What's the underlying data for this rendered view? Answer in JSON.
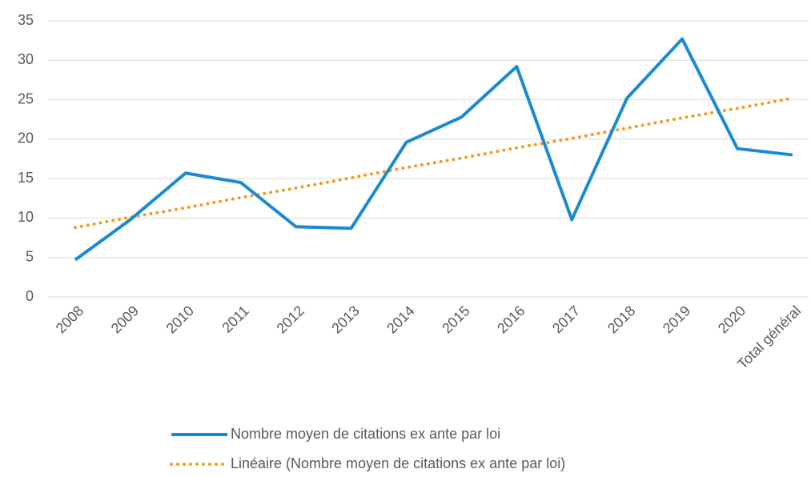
{
  "chart_data": {
    "type": "line",
    "categories": [
      "2008",
      "2009",
      "2010",
      "2011",
      "2012",
      "2013",
      "2014",
      "2015",
      "2016",
      "2017",
      "2018",
      "2019",
      "2020",
      "Total général"
    ],
    "series": [
      {
        "name": "Nombre moyen de citations ex ante par loi",
        "color": "#1a8bd0",
        "style": "solid",
        "values": [
          4.7,
          9.8,
          15.7,
          14.5,
          8.9,
          8.7,
          19.6,
          22.8,
          29.2,
          9.8,
          25.2,
          32.7,
          18.8,
          18.0
        ]
      },
      {
        "name": "Linéaire (Nombre moyen de citations ex ante par loi)",
        "color": "#f39a1e",
        "style": "dotted",
        "values": [
          8.8,
          10.1,
          11.3,
          12.6,
          13.8,
          15.1,
          16.4,
          17.6,
          18.9,
          20.1,
          21.4,
          22.7,
          23.9,
          25.2
        ]
      }
    ],
    "ylim": [
      0,
      35
    ],
    "yticks": [
      0,
      5,
      10,
      15,
      20,
      25,
      30,
      35
    ],
    "grid": true,
    "legend": "bottom"
  }
}
